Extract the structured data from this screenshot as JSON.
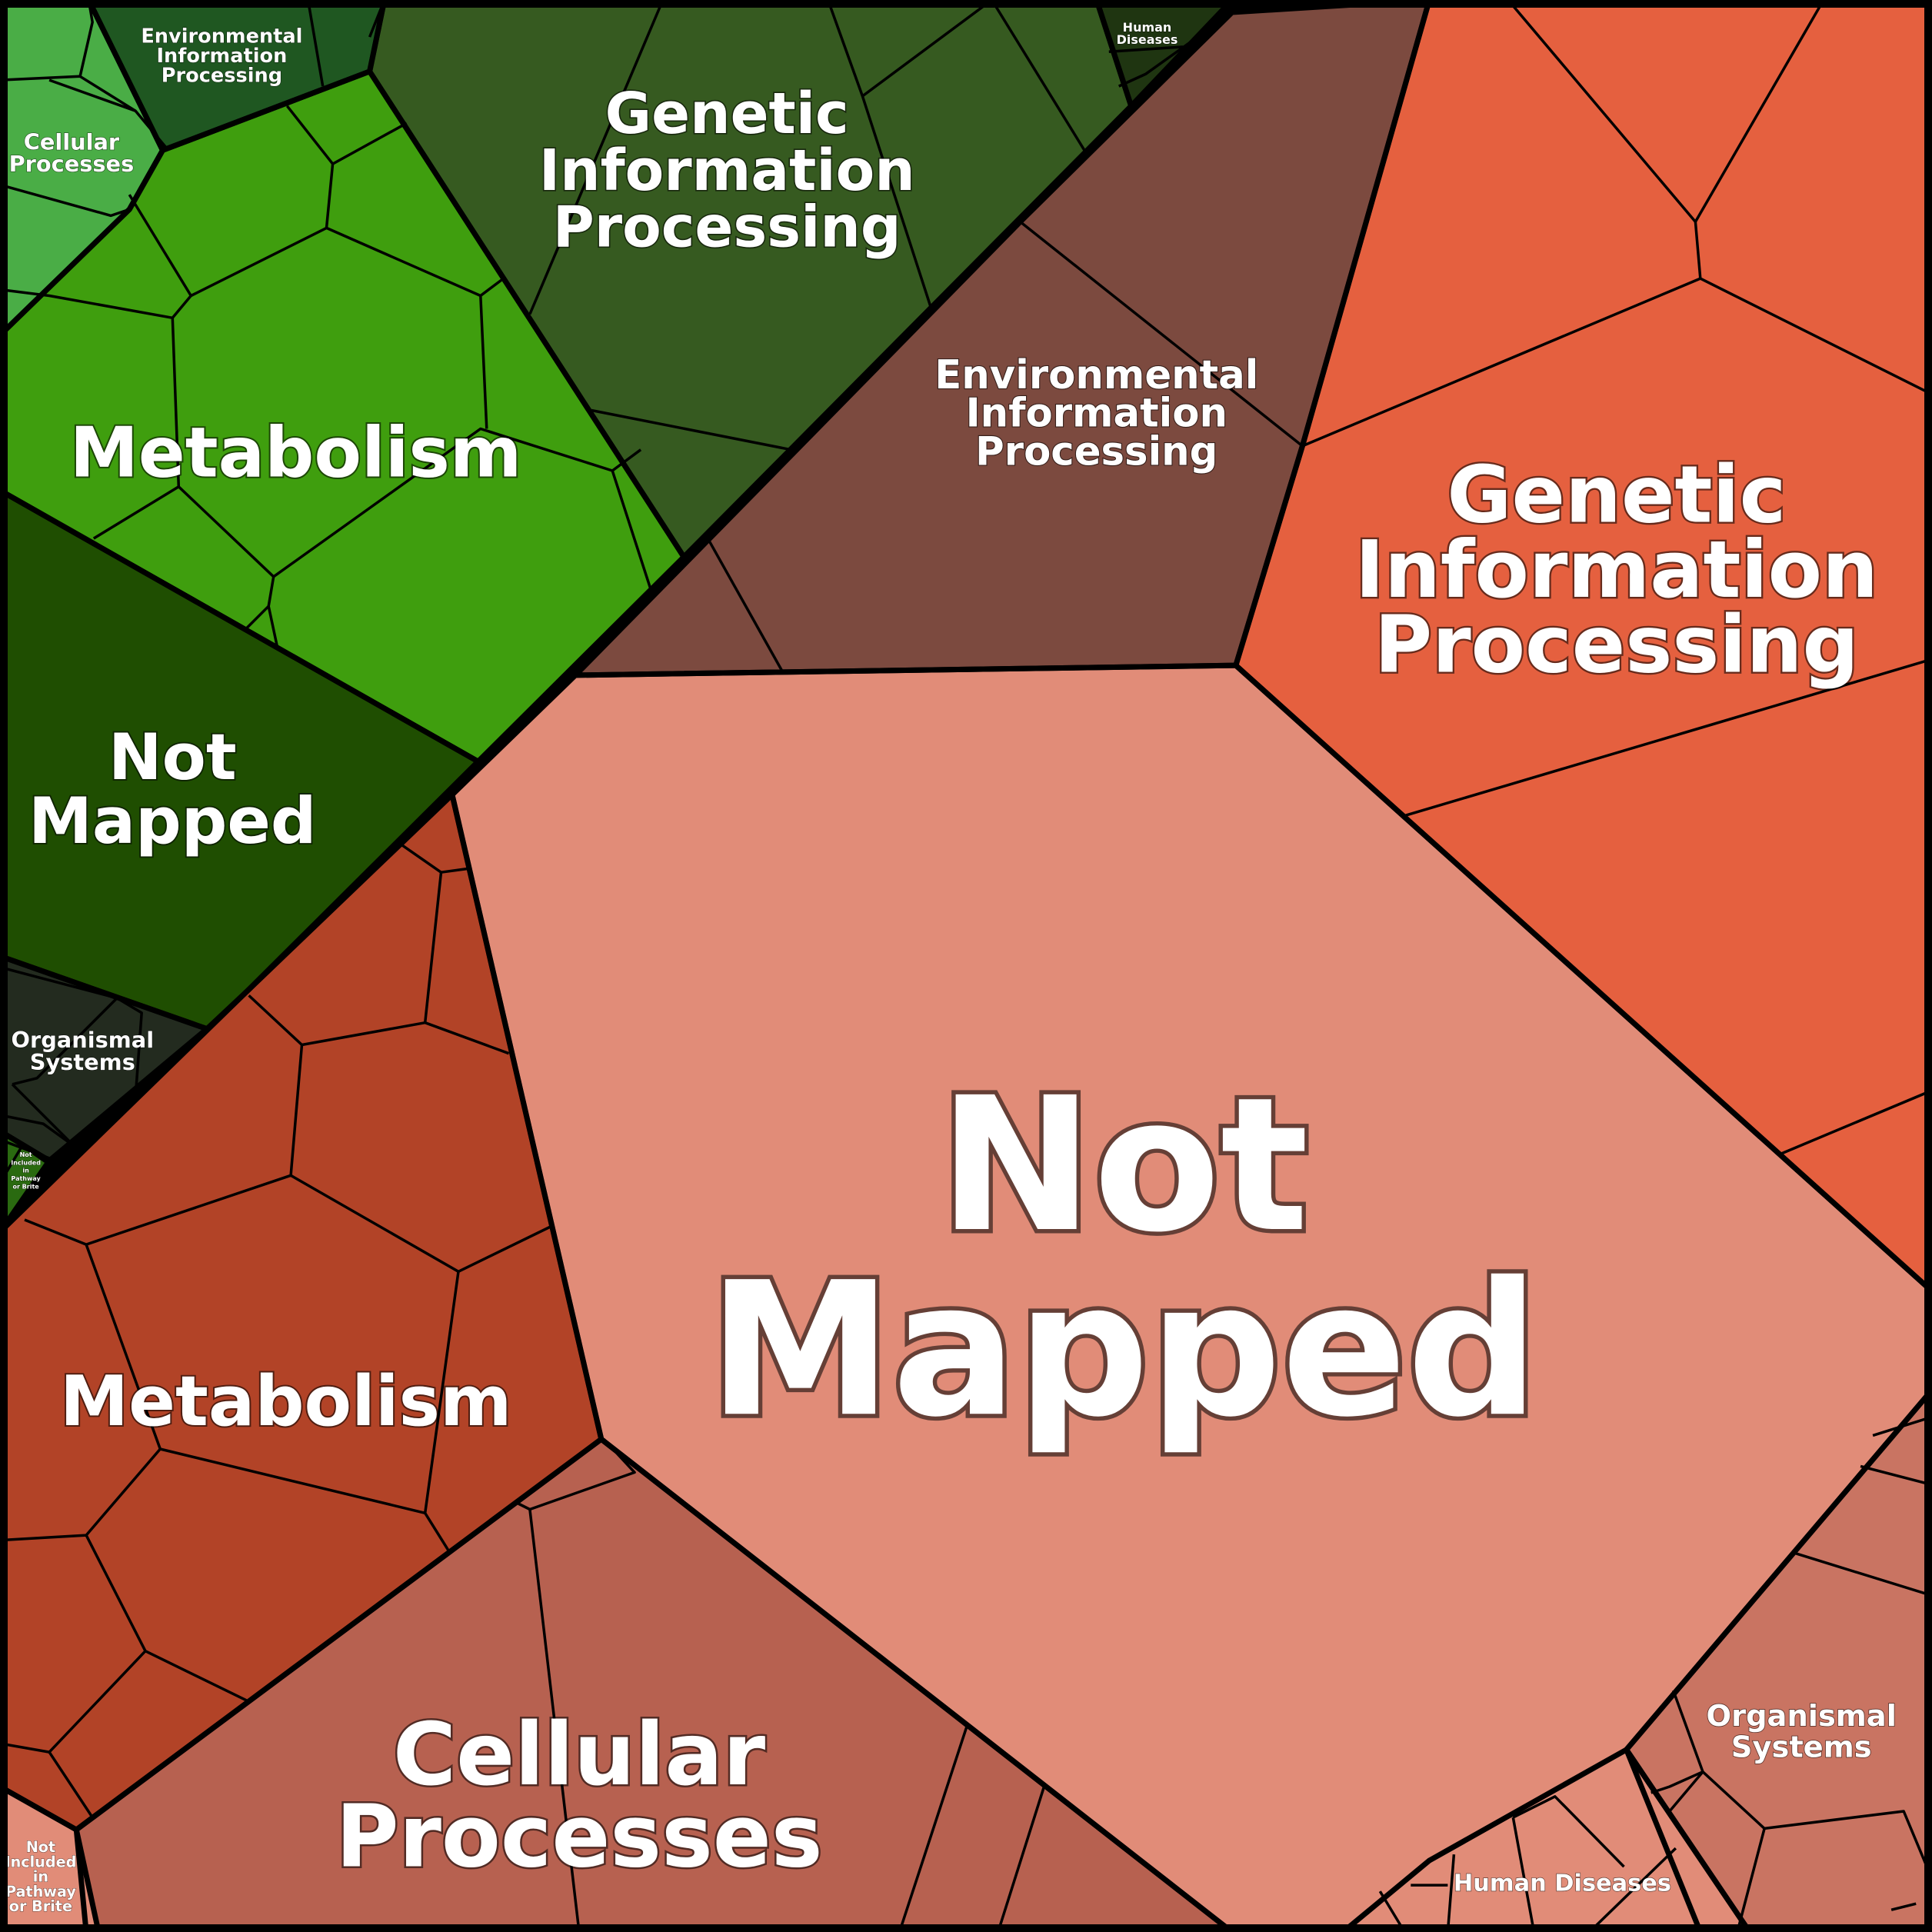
{
  "diagram": {
    "type": "voronoi-treemap",
    "groups": [
      {
        "id": "green",
        "color": "#3f9e0e",
        "categories": [
          {
            "key": "g_metab",
            "label_lines": [
              "Metabolism"
            ],
            "color": "#3f9e0e"
          },
          {
            "key": "g_gip",
            "label_lines": [
              "Genetic",
              "Information",
              "Processing"
            ],
            "color": "#365a20"
          },
          {
            "key": "g_notmapped",
            "label_lines": [
              "Not",
              "Mapped"
            ],
            "color": "#1f4e01"
          },
          {
            "key": "g_eip",
            "label_lines": [
              "Environmental",
              "Information",
              "Processing"
            ],
            "color": "#1f5721"
          },
          {
            "key": "g_cell",
            "label_lines": [
              "Cellular",
              "Processes"
            ],
            "color": "#4aad46"
          },
          {
            "key": "g_org",
            "label_lines": [
              "Organismal",
              "Systems"
            ],
            "color": "#232b1f"
          },
          {
            "key": "g_human",
            "label_lines": [
              "Human",
              "Diseases"
            ],
            "color": "#1f3511"
          },
          {
            "key": "g_notinc",
            "label_lines": [
              "Not",
              "Included",
              "in",
              "Pathway",
              "or Brite"
            ],
            "color": "#2a6a10"
          }
        ]
      },
      {
        "id": "red",
        "color": "#e5603f",
        "categories": [
          {
            "key": "r_notmapped",
            "label_lines": [
              "Not",
              "Mapped"
            ],
            "color": "#e18c78"
          },
          {
            "key": "r_gip",
            "label_lines": [
              "Genetic",
              "Information",
              "Processing"
            ],
            "color": "#e5603f"
          },
          {
            "key": "r_eip",
            "label_lines": [
              "Environmental",
              "Information",
              "Processing"
            ],
            "color": "#7c4a3f"
          },
          {
            "key": "r_metab",
            "label_lines": [
              "Metabolism"
            ],
            "color": "#b24327"
          },
          {
            "key": "r_cell",
            "label_lines": [
              "Cellular",
              "Processes"
            ],
            "color": "#b76150"
          },
          {
            "key": "r_org",
            "label_lines": [
              "Organismal",
              "Systems"
            ],
            "color": "#c97462"
          },
          {
            "key": "r_human",
            "label_lines": [
              "Human Diseases"
            ],
            "color": "#e18c78"
          },
          {
            "key": "r_notinc",
            "label_lines": [
              "Not",
              "Included",
              "in",
              "Pathway",
              "or Brite"
            ],
            "color": "#e18c78"
          }
        ]
      }
    ]
  }
}
